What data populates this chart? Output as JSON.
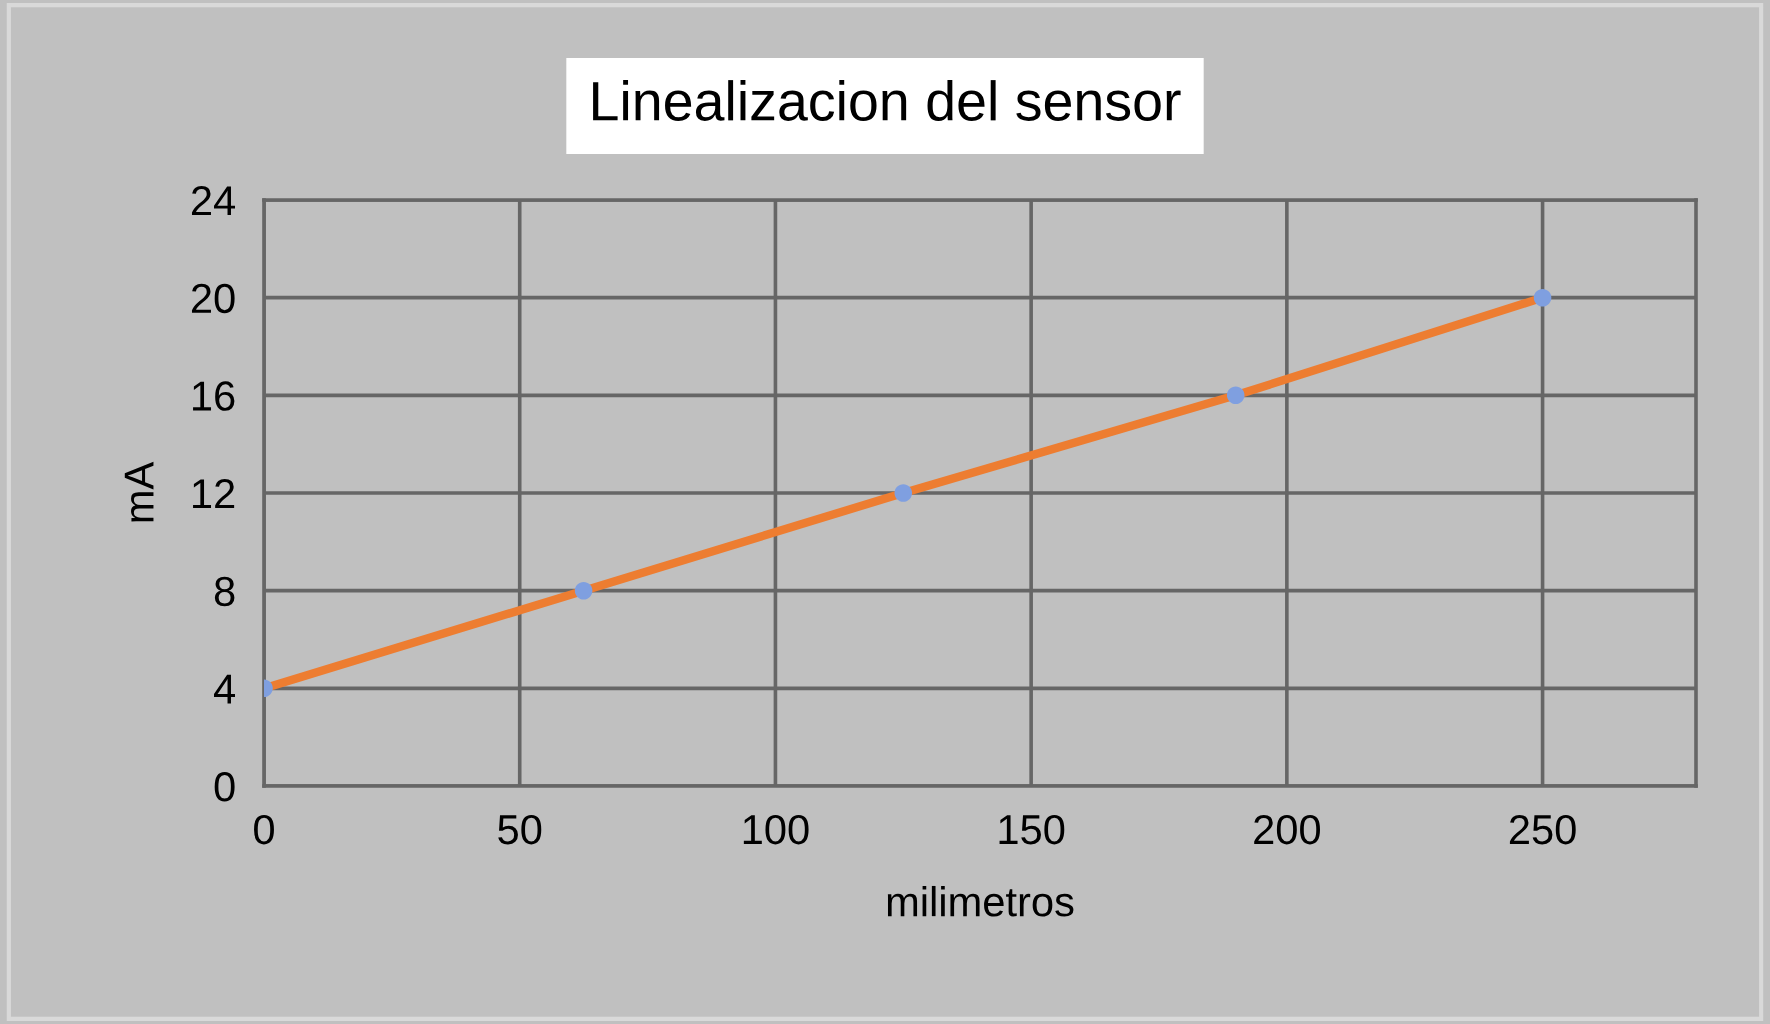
{
  "chart_data": {
    "type": "line",
    "title": "Linealizacion del sensor",
    "xlabel": "milimetros",
    "ylabel": "mA",
    "x": [
      0,
      62.5,
      125,
      190,
      250
    ],
    "series": [
      {
        "color": "#ed7d31",
        "colors": [
          "#7f9fe0",
          "#7f9fe0",
          "#7f9fe0",
          "#7f9fe0",
          "#7f9fe0"
        ],
        "values": [
          4,
          8,
          12,
          16,
          20
        ]
      }
    ],
    "xlim": [
      0,
      280
    ],
    "xticks": [
      0,
      50,
      100,
      150,
      200,
      250
    ],
    "ylim": [
      0,
      24
    ],
    "yticks": [
      0,
      4,
      8,
      12,
      16,
      20,
      24
    ],
    "grid": true,
    "marker": "circle",
    "line_style": "solid",
    "legend": false
  }
}
